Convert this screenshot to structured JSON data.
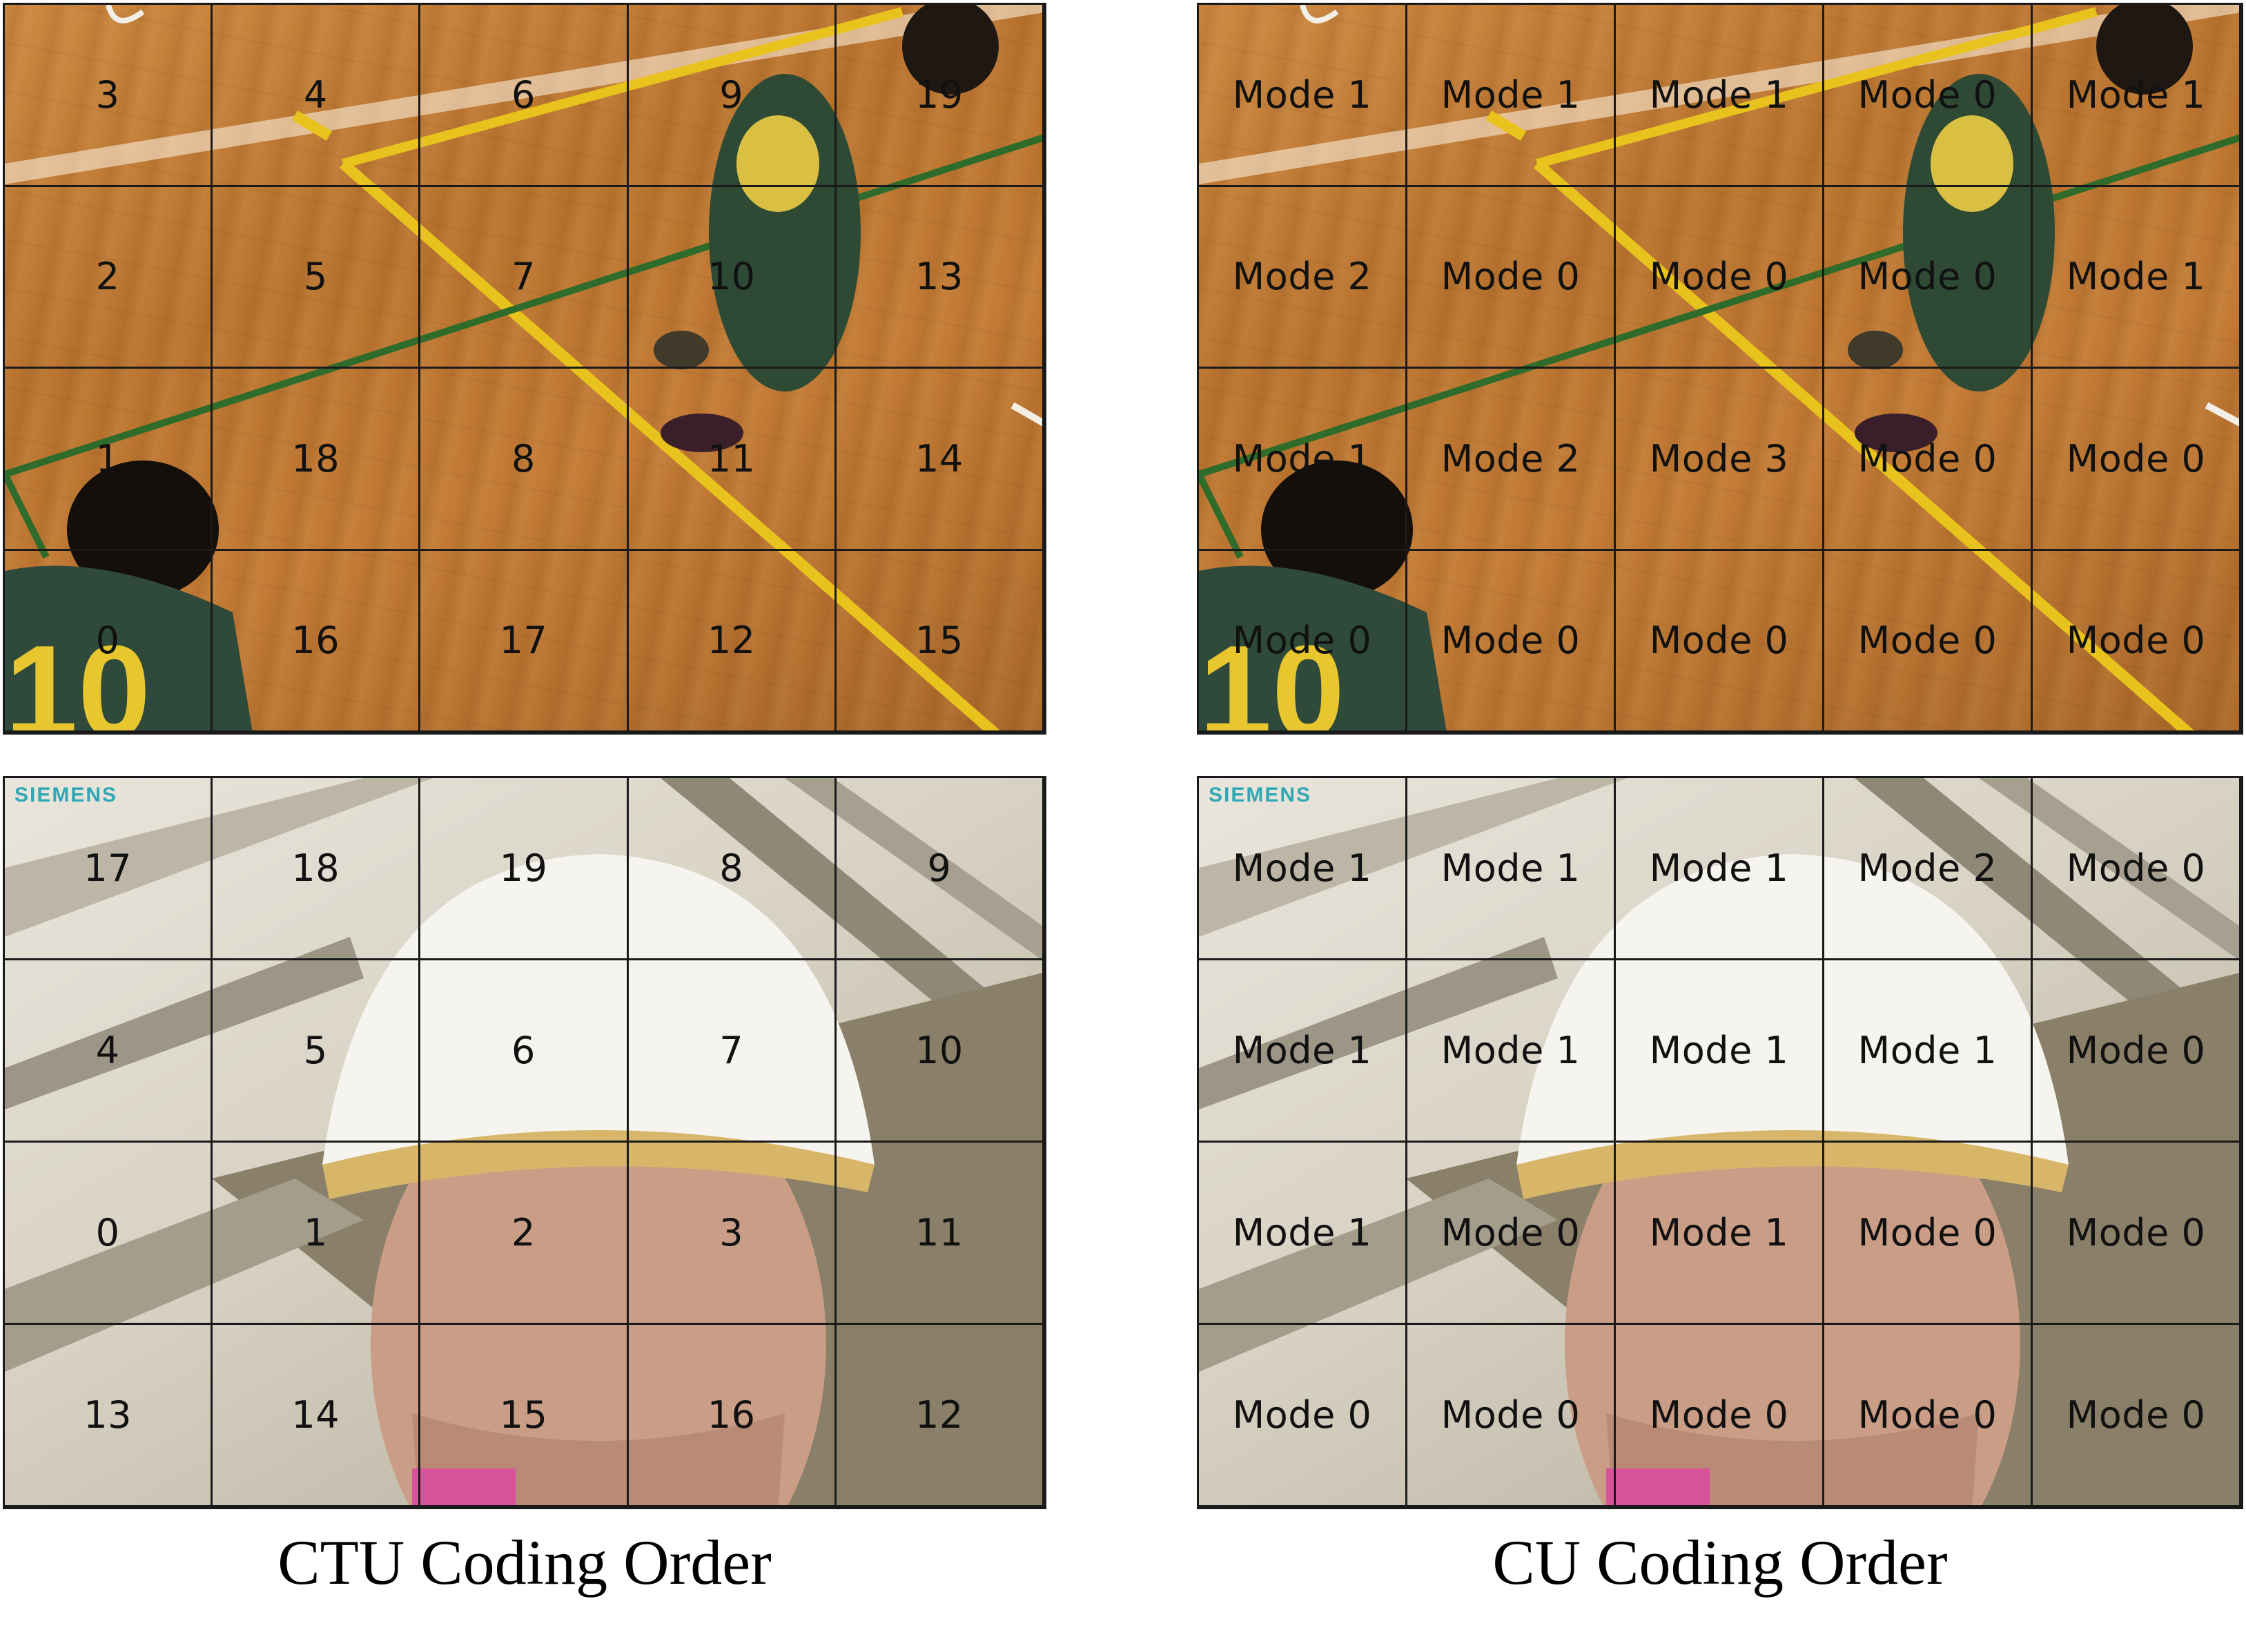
{
  "panels": [
    {
      "id": "basketball-ctu",
      "labels": [
        [
          "3",
          "4",
          "6",
          "9",
          "19"
        ],
        [
          "2",
          "5",
          "7",
          "10",
          "13"
        ],
        [
          "1",
          "18",
          "8",
          "11",
          "14"
        ],
        [
          "0",
          "16",
          "17",
          "12",
          "15"
        ]
      ]
    },
    {
      "id": "basketball-cu",
      "labels": [
        [
          "Mode 1",
          "Mode 1",
          "Mode 1",
          "Mode 0",
          "Mode 1"
        ],
        [
          "Mode 2",
          "Mode 0",
          "Mode 0",
          "Mode 0",
          "Mode 1"
        ],
        [
          "Mode 1",
          "Mode 2",
          "Mode 3",
          "Mode 0",
          "Mode 0"
        ],
        [
          "Mode 0",
          "Mode 0",
          "Mode 0",
          "Mode 0",
          "Mode 0"
        ]
      ]
    },
    {
      "id": "foreman-ctu",
      "logo": "SIEMENS",
      "labels": [
        [
          "17",
          "18",
          "19",
          "8",
          "9"
        ],
        [
          "4",
          "5",
          "6",
          "7",
          "10"
        ],
        [
          "0",
          "1",
          "2",
          "3",
          "11"
        ],
        [
          "13",
          "14",
          "15",
          "16",
          "12"
        ]
      ]
    },
    {
      "id": "foreman-cu",
      "logo": "SIEMENS",
      "labels": [
        [
          "Mode 1",
          "Mode 1",
          "Mode 1",
          "Mode 2",
          "Mode 0"
        ],
        [
          "Mode 1",
          "Mode 1",
          "Mode 1",
          "Mode 1",
          "Mode 0"
        ],
        [
          "Mode 1",
          "Mode 0",
          "Mode 1",
          "Mode 0",
          "Mode 0"
        ],
        [
          "Mode 0",
          "Mode 0",
          "Mode 0",
          "Mode 0",
          "Mode 0"
        ]
      ]
    }
  ],
  "captions": {
    "left": "CTU Coding Order",
    "right": "CU Coding Order"
  },
  "colors": {
    "grid": "#1a1a1a",
    "label": "#111111",
    "logo": "#2fa8b4"
  }
}
